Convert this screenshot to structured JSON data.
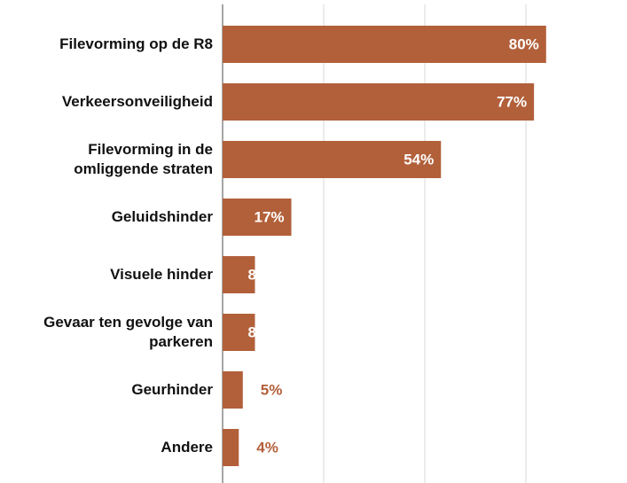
{
  "chart_data": {
    "type": "bar",
    "orientation": "horizontal",
    "categories": [
      "Filevorming op de R8",
      "Verkeersonveiligheid",
      "Filevorming in de\nomliggende straten",
      "Geluidshinder",
      "Visuele hinder",
      "Gevaar ten gevolge van\nparkeren",
      "Geurhinder",
      "Andere"
    ],
    "values": [
      80,
      77,
      54,
      17,
      8,
      8,
      5,
      4
    ],
    "value_labels": [
      "80%",
      "77%",
      "54%",
      "17%",
      "8%",
      "8%",
      "5%",
      "4%"
    ],
    "color": "#b2603a",
    "xlim": [
      0,
      100
    ],
    "xticks": [
      0,
      25,
      50,
      75
    ],
    "grid": true
  }
}
